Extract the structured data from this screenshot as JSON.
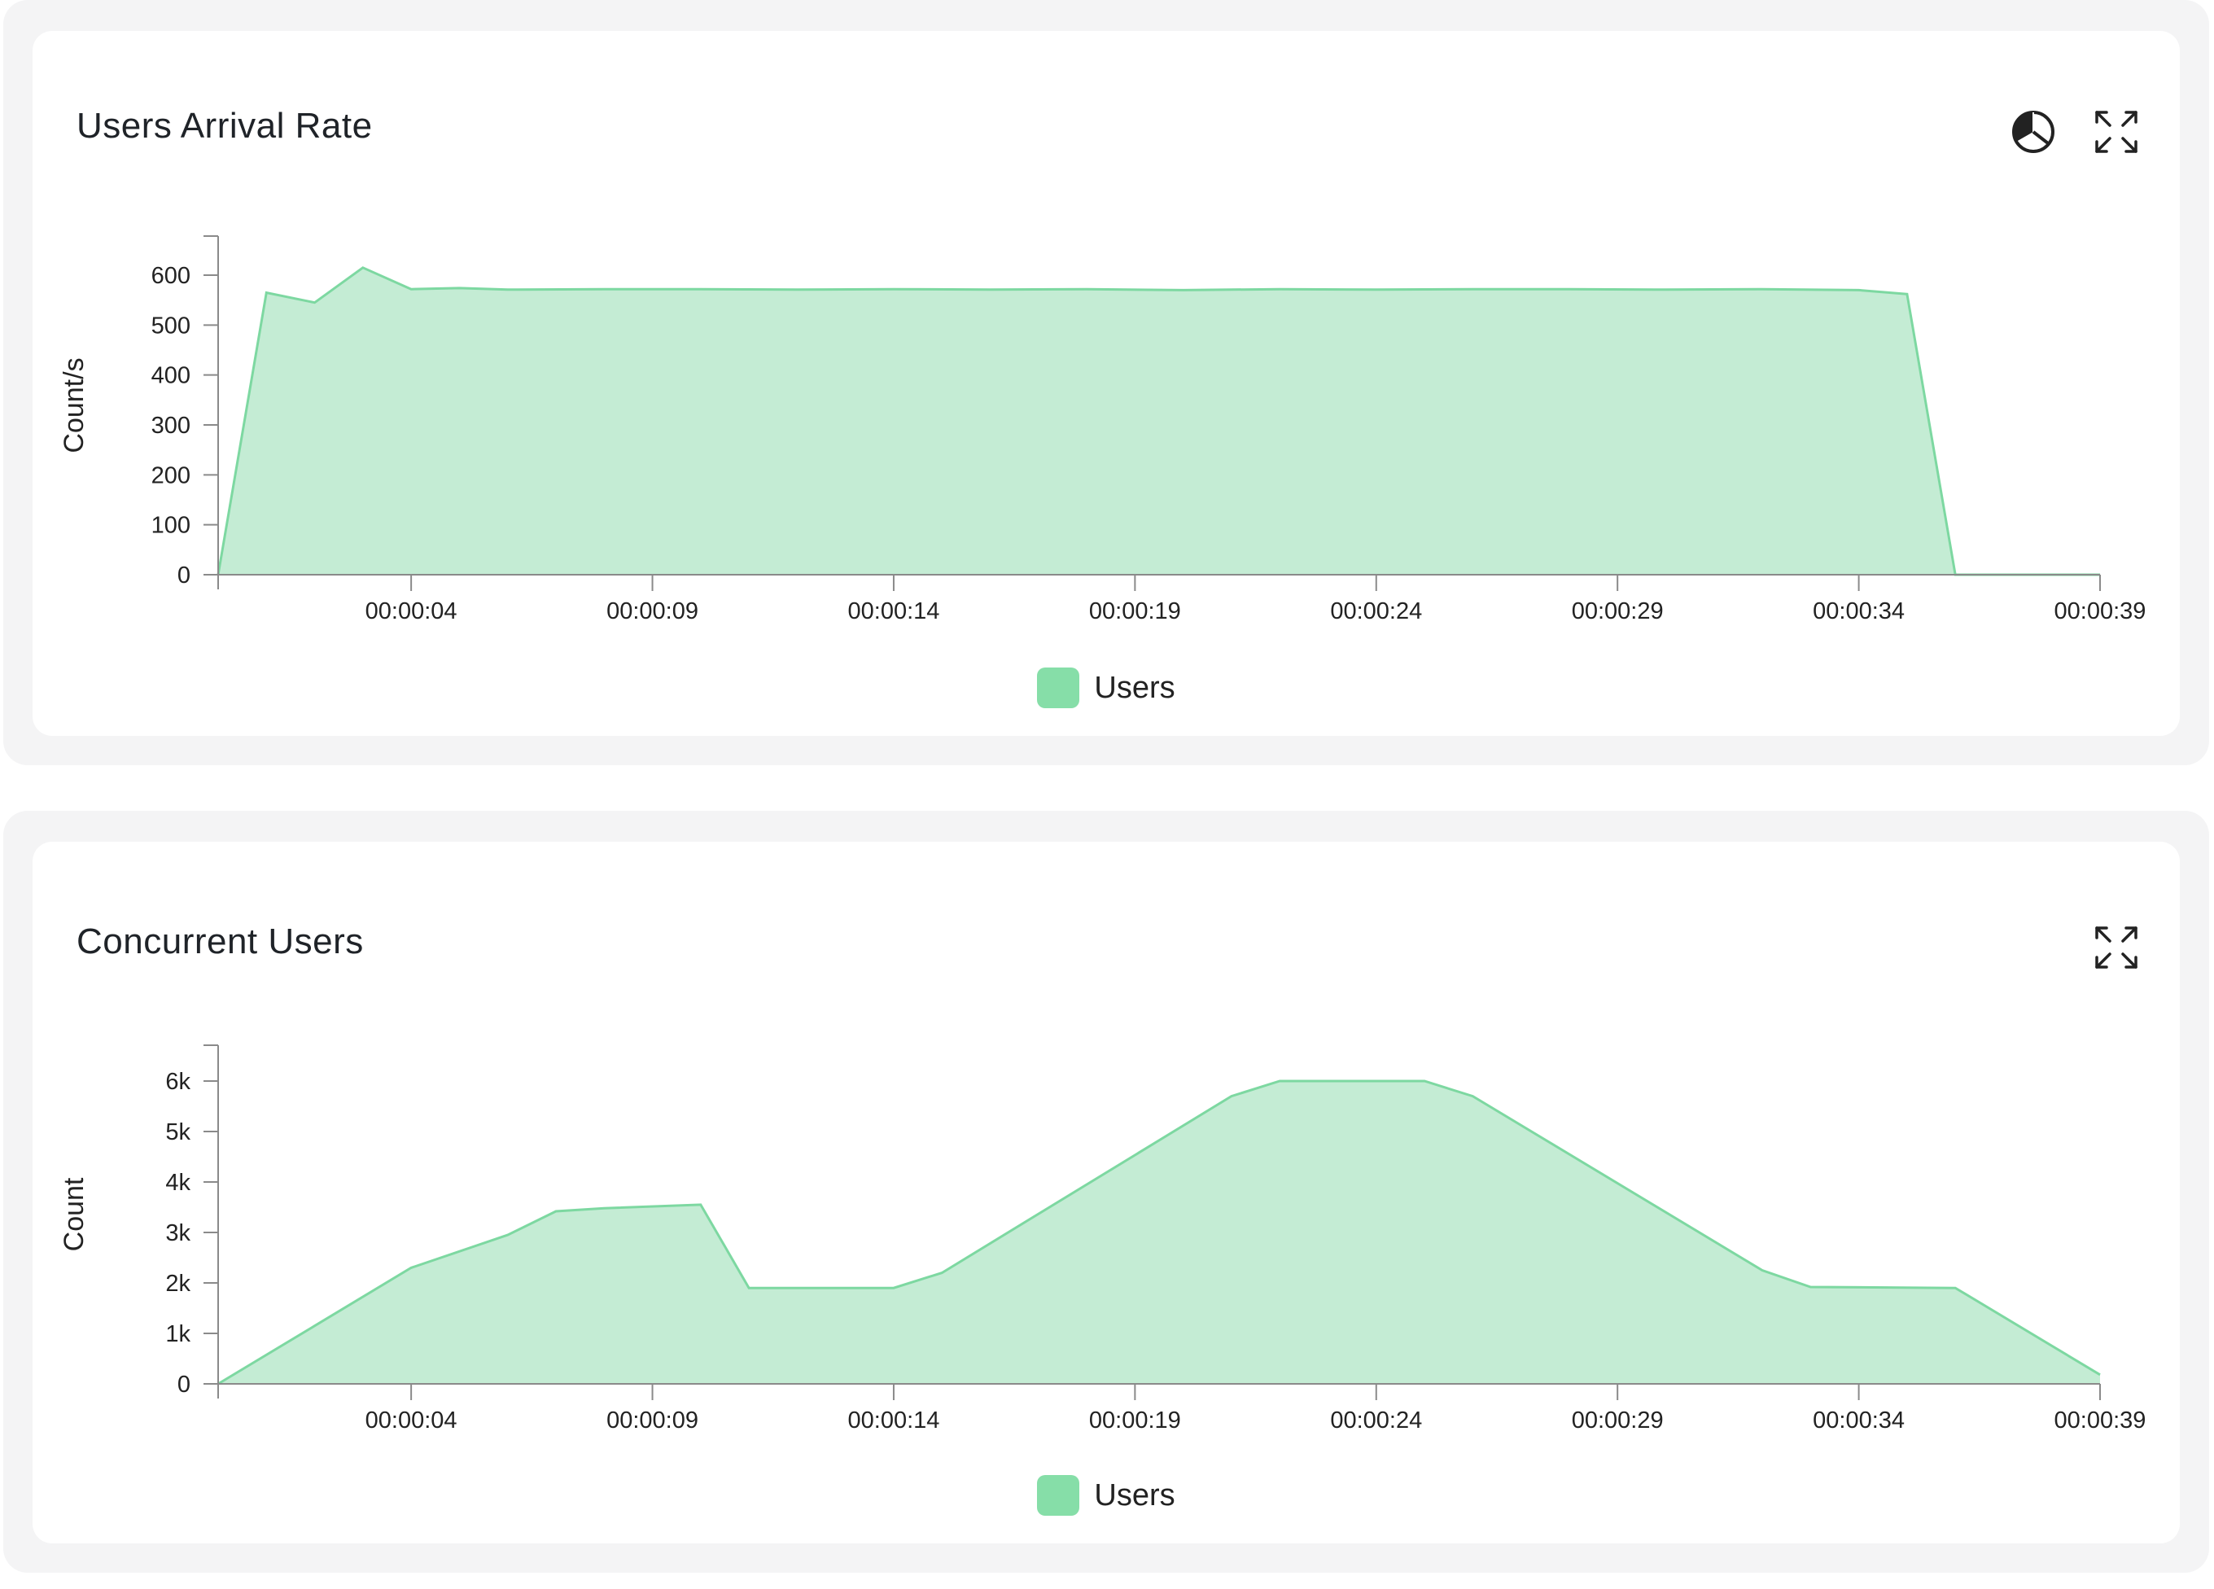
{
  "colors": {
    "fill": "#c4ecd4",
    "stroke": "#7dd8a1",
    "swatch": "#86dea8",
    "axis": "#8a8a8a"
  },
  "panels": [
    {
      "title": "Users Arrival Rate",
      "icons": [
        "pie-chart-icon",
        "expand-icon"
      ],
      "legend_label": "Users",
      "chart_data": {
        "type": "area",
        "title": "Users Arrival Rate",
        "xlabel": "",
        "ylabel": "Count/s",
        "x_ticks": [
          "00:00:04",
          "00:00:09",
          "00:00:14",
          "00:00:19",
          "00:00:24",
          "00:00:29",
          "00:00:34",
          "00:00:39"
        ],
        "y_ticks": [
          "0",
          "100",
          "200",
          "300",
          "400",
          "500",
          "600"
        ],
        "y_tick_values": [
          0,
          100,
          200,
          300,
          400,
          500,
          600
        ],
        "xlim": [
          0,
          39
        ],
        "ylim": [
          0,
          680
        ],
        "series": [
          {
            "name": "Users",
            "points": [
              [
                0,
                0
              ],
              [
                1,
                565
              ],
              [
                2,
                545
              ],
              [
                3,
                615
              ],
              [
                4,
                572
              ],
              [
                5,
                574
              ],
              [
                6,
                571
              ],
              [
                8,
                572
              ],
              [
                10,
                572
              ],
              [
                12,
                571
              ],
              [
                14,
                572
              ],
              [
                16,
                571
              ],
              [
                18,
                572
              ],
              [
                20,
                570
              ],
              [
                22,
                572
              ],
              [
                24,
                571
              ],
              [
                26,
                572
              ],
              [
                28,
                572
              ],
              [
                30,
                571
              ],
              [
                32,
                572
              ],
              [
                34,
                570
              ],
              [
                35,
                562
              ],
              [
                36,
                0
              ],
              [
                39,
                0
              ]
            ]
          }
        ],
        "legend": [
          "Users"
        ],
        "legend_position": "bottom-center",
        "grid": false
      }
    },
    {
      "title": "Concurrent Users",
      "icons": [
        "expand-icon"
      ],
      "legend_label": "Users",
      "chart_data": {
        "type": "area",
        "title": "Concurrent Users",
        "xlabel": "",
        "ylabel": "Count",
        "x_ticks": [
          "00:00:04",
          "00:00:09",
          "00:00:14",
          "00:00:19",
          "00:00:24",
          "00:00:29",
          "00:00:34",
          "00:00:39"
        ],
        "y_ticks": [
          "0",
          "1k",
          "2k",
          "3k",
          "4k",
          "5k",
          "6k"
        ],
        "y_tick_values": [
          0,
          1000,
          2000,
          3000,
          4000,
          5000,
          6000
        ],
        "xlim": [
          0,
          39
        ],
        "ylim": [
          0,
          6600
        ],
        "series": [
          {
            "name": "Users",
            "points": [
              [
                0,
                0
              ],
              [
                2,
                1150
              ],
              [
                4,
                2300
              ],
              [
                6,
                2950
              ],
              [
                7,
                3420
              ],
              [
                8,
                3480
              ],
              [
                10,
                3550
              ],
              [
                11,
                1900
              ],
              [
                14,
                1900
              ],
              [
                15,
                2200
              ],
              [
                21,
                5700
              ],
              [
                22,
                6000
              ],
              [
                25,
                6000
              ],
              [
                26,
                5700
              ],
              [
                32,
                2250
              ],
              [
                33,
                1920
              ],
              [
                36,
                1900
              ],
              [
                39,
                180
              ]
            ]
          }
        ],
        "legend": [
          "Users"
        ],
        "legend_position": "bottom-center",
        "grid": false
      }
    }
  ]
}
